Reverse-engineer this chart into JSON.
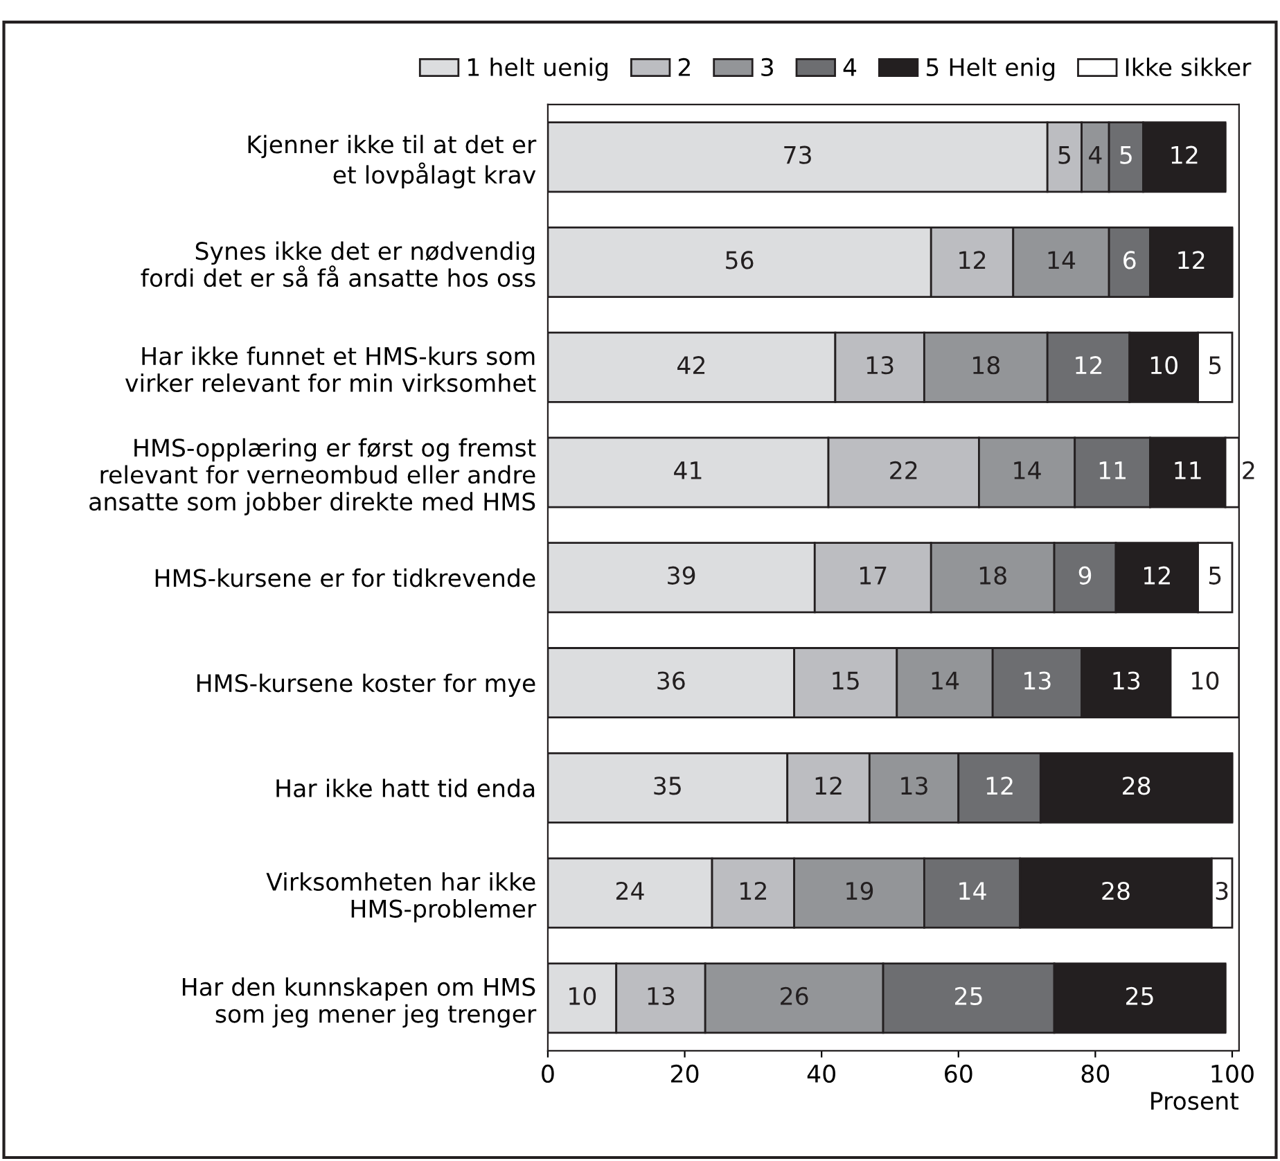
{
  "chart_data": {
    "type": "bar",
    "orientation": "horizontal",
    "stacked": true,
    "xlabel": "Prosent",
    "categories": [
      "Kjenner ikke til at det er\net lovpålagt krav",
      "Synes ikke det er nødvendig\nfordi det er så få ansatte hos oss",
      "Har ikke funnet et HMS-kurs som\nvirker relevant for min virksomhet",
      "HMS-opplæring er først og fremst\nrelevant for verneombud eller andre\nansatte som jobber direkte med HMS",
      "HMS-kursene er for tidkrevende",
      "HMS-kursene koster for mye",
      "Har ikke hatt tid enda",
      "Virksomheten har ikke\nHMS-problemer",
      "Har den kunnskapen om HMS\nsom jeg mener jeg trenger"
    ],
    "series": [
      {
        "name": "1 helt uenig",
        "color": "#dcdddf",
        "values": [
          73,
          56,
          42,
          41,
          39,
          36,
          35,
          24,
          10
        ]
      },
      {
        "name": "2",
        "color": "#bcbdc1",
        "values": [
          5,
          12,
          13,
          22,
          17,
          15,
          12,
          12,
          13
        ]
      },
      {
        "name": "3",
        "color": "#939598",
        "values": [
          4,
          14,
          18,
          14,
          18,
          14,
          13,
          19,
          26
        ]
      },
      {
        "name": "4",
        "color": "#6d6e71",
        "values": [
          5,
          6,
          12,
          11,
          9,
          13,
          12,
          14,
          25
        ]
      },
      {
        "name": "5 Helt enig",
        "color": "#231f20",
        "values": [
          12,
          12,
          10,
          11,
          12,
          13,
          28,
          28,
          25
        ]
      },
      {
        "name": "Ikke sikker",
        "color": "#ffffff",
        "values": [
          null,
          null,
          5,
          2,
          5,
          10,
          null,
          3,
          null
        ]
      }
    ],
    "data_labels": true,
    "xlim": [
      0,
      101
    ],
    "xticks": [
      0,
      20,
      40,
      60,
      80,
      100
    ],
    "grid": false,
    "legend": "top"
  }
}
